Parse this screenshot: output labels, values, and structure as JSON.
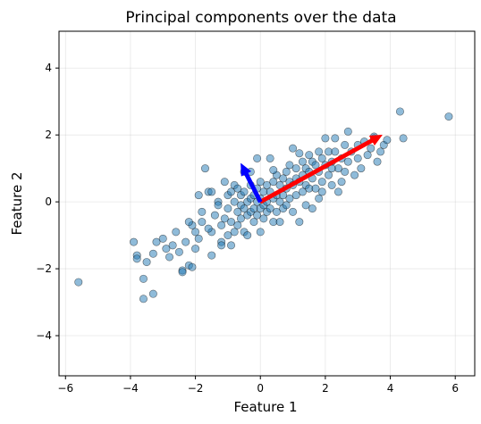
{
  "chart_data": {
    "type": "scatter",
    "title": "Principal components over the data",
    "xlabel": "Feature 1",
    "ylabel": "Feature 2",
    "xlim": [
      -6.2,
      6.6
    ],
    "ylim": [
      -5.2,
      5.1
    ],
    "xticks": [
      -6,
      -4,
      -2,
      0,
      2,
      4,
      6
    ],
    "yticks": [
      -4,
      -2,
      0,
      2,
      4
    ],
    "grid": true,
    "point_color": "#1f77b4",
    "points": [
      [
        -5.6,
        -2.4
      ],
      [
        -3.9,
        -1.2
      ],
      [
        -3.8,
        -1.6
      ],
      [
        -3.8,
        -1.7
      ],
      [
        -3.6,
        -2.3
      ],
      [
        -3.6,
        -2.9
      ],
      [
        -3.3,
        -2.75
      ],
      [
        -3.5,
        -1.8
      ],
      [
        -3.3,
        -1.55
      ],
      [
        -3.2,
        -1.2
      ],
      [
        -3.0,
        -1.1
      ],
      [
        -2.9,
        -1.4
      ],
      [
        -2.8,
        -1.65
      ],
      [
        -2.7,
        -1.3
      ],
      [
        -2.6,
        -0.9
      ],
      [
        -2.5,
        -1.5
      ],
      [
        -2.4,
        -2.05
      ],
      [
        -2.4,
        -2.1
      ],
      [
        -2.2,
        -1.9
      ],
      [
        -2.1,
        -1.95
      ],
      [
        -2.3,
        -1.2
      ],
      [
        -2.1,
        -0.7
      ],
      [
        -2.0,
        -1.4
      ],
      [
        -2.0,
        -0.9
      ],
      [
        -1.9,
        -1.1
      ],
      [
        -1.8,
        -0.6
      ],
      [
        -1.8,
        -0.3
      ],
      [
        -1.7,
        1.0
      ],
      [
        -1.6,
        0.3
      ],
      [
        -1.5,
        0.3
      ],
      [
        -1.5,
        -0.9
      ],
      [
        -1.5,
        -1.6
      ],
      [
        -1.4,
        -0.4
      ],
      [
        -1.3,
        0.0
      ],
      [
        -1.3,
        -0.1
      ],
      [
        -1.2,
        -0.7
      ],
      [
        -1.2,
        -1.2
      ],
      [
        -1.2,
        -1.3
      ],
      [
        -1.1,
        0.6
      ],
      [
        -1.1,
        -0.5
      ],
      [
        -1.0,
        0.2
      ],
      [
        -1.0,
        -0.2
      ],
      [
        -1.0,
        -1.0
      ],
      [
        -0.9,
        0.3
      ],
      [
        -0.9,
        -0.6
      ],
      [
        -0.9,
        -1.3
      ],
      [
        -0.8,
        0.5
      ],
      [
        -0.8,
        0.0
      ],
      [
        -0.8,
        -0.9
      ],
      [
        -0.7,
        0.4
      ],
      [
        -0.7,
        -0.3
      ],
      [
        -0.7,
        -0.7
      ],
      [
        -0.6,
        0.2
      ],
      [
        -0.6,
        -0.1
      ],
      [
        -0.6,
        -0.5
      ],
      [
        -0.5,
        0.9
      ],
      [
        -0.5,
        0.3
      ],
      [
        -0.5,
        -0.2
      ],
      [
        -0.5,
        -0.9
      ],
      [
        -0.4,
        0.0
      ],
      [
        -0.4,
        -0.4
      ],
      [
        -0.4,
        -1.0
      ],
      [
        -0.3,
        0.5
      ],
      [
        -0.3,
        0.1
      ],
      [
        -0.3,
        -0.3
      ],
      [
        -0.2,
        0.2
      ],
      [
        -0.2,
        -0.2
      ],
      [
        -0.2,
        -0.6
      ],
      [
        -0.1,
        1.3
      ],
      [
        -0.1,
        0.4
      ],
      [
        -0.1,
        0.0
      ],
      [
        -0.1,
        -0.4
      ],
      [
        0.0,
        0.6
      ],
      [
        0.0,
        0.1
      ],
      [
        0.0,
        -0.2
      ],
      [
        0.0,
        -0.9
      ],
      [
        0.1,
        0.3
      ],
      [
        0.1,
        -0.1
      ],
      [
        0.1,
        -0.5
      ],
      [
        0.2,
        0.5
      ],
      [
        0.2,
        0.0
      ],
      [
        0.2,
        -0.3
      ],
      [
        0.3,
        1.3
      ],
      [
        0.3,
        0.3
      ],
      [
        0.3,
        -0.2
      ],
      [
        0.4,
        0.6
      ],
      [
        0.4,
        0.1
      ],
      [
        0.4,
        -0.6
      ],
      [
        0.5,
        0.8
      ],
      [
        0.5,
        0.2
      ],
      [
        0.5,
        -0.3
      ],
      [
        0.6,
        0.5
      ],
      [
        0.6,
        0.0
      ],
      [
        0.7,
        0.7
      ],
      [
        0.7,
        0.2
      ],
      [
        0.7,
        -0.2
      ],
      [
        0.8,
        0.9
      ],
      [
        0.8,
        0.4
      ],
      [
        0.8,
        -0.1
      ],
      [
        0.9,
        1.1
      ],
      [
        0.9,
        0.6
      ],
      [
        0.9,
        0.1
      ],
      [
        1.0,
        0.5
      ],
      [
        1.0,
        -0.3
      ],
      [
        1.1,
        1.0
      ],
      [
        1.1,
        0.7
      ],
      [
        1.1,
        0.2
      ],
      [
        1.2,
        0.6
      ],
      [
        1.2,
        -0.6
      ],
      [
        1.3,
        1.2
      ],
      [
        1.3,
        0.8
      ],
      [
        1.3,
        0.3
      ],
      [
        1.4,
        1.0
      ],
      [
        1.4,
        0.5
      ],
      [
        1.4,
        -0.1
      ],
      [
        1.5,
        1.4
      ],
      [
        1.5,
        0.9
      ],
      [
        1.5,
        0.4
      ],
      [
        1.6,
        1.2
      ],
      [
        1.6,
        0.7
      ],
      [
        1.7,
        1.1
      ],
      [
        1.7,
        0.4
      ],
      [
        1.8,
        1.5
      ],
      [
        1.8,
        0.9
      ],
      [
        1.8,
        0.1
      ],
      [
        1.9,
        1.3
      ],
      [
        1.9,
        0.6
      ],
      [
        2.0,
        1.1
      ],
      [
        2.0,
        1.9
      ],
      [
        2.1,
        0.8
      ],
      [
        2.1,
        1.5
      ],
      [
        2.2,
        1.2
      ],
      [
        2.2,
        0.5
      ],
      [
        2.3,
        1.5
      ],
      [
        2.3,
        1.9
      ],
      [
        2.4,
        1.0
      ],
      [
        2.4,
        0.3
      ],
      [
        2.5,
        1.3
      ],
      [
        2.6,
        1.7
      ],
      [
        2.6,
        0.9
      ],
      [
        2.7,
        2.1
      ],
      [
        2.7,
        1.2
      ],
      [
        2.8,
        1.5
      ],
      [
        2.9,
        0.8
      ],
      [
        3.0,
        1.3
      ],
      [
        3.1,
        1.0
      ],
      [
        3.2,
        1.8
      ],
      [
        3.3,
        1.4
      ],
      [
        3.4,
        1.6
      ],
      [
        3.5,
        1.9
      ],
      [
        3.6,
        1.2
      ],
      [
        3.7,
        1.5
      ],
      [
        3.8,
        1.7
      ],
      [
        3.9,
        1.85
      ],
      [
        3.5,
        1.95
      ],
      [
        3.0,
        1.7
      ],
      [
        2.5,
        0.6
      ],
      [
        1.6,
        -0.2
      ],
      [
        1.0,
        1.6
      ],
      [
        0.6,
        -0.6
      ],
      [
        -0.3,
        0.9
      ],
      [
        1.2,
        1.45
      ],
      [
        1.9,
        0.3
      ],
      [
        2.2,
        1.0
      ],
      [
        -1.6,
        -0.8
      ],
      [
        -2.2,
        -0.6
      ],
      [
        -1.9,
        0.2
      ],
      [
        0.4,
        0.95
      ],
      [
        4.3,
        2.7
      ],
      [
        4.4,
        1.9
      ],
      [
        5.8,
        2.55
      ]
    ],
    "arrows": [
      {
        "from": [
          0,
          0
        ],
        "to": [
          3.75,
          2.0
        ],
        "color": "#ff0000"
      },
      {
        "from": [
          0,
          0
        ],
        "to": [
          -0.6,
          1.15
        ],
        "color": "#0000ff"
      }
    ]
  }
}
